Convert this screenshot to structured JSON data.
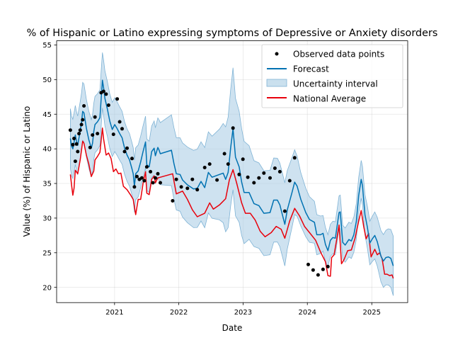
{
  "chart_data": {
    "type": "line",
    "title": "% of Hispanic or Latino expressing symptoms of Depressive or Anxiety disorders",
    "xlabel": "Date",
    "ylabel": "Value (%) of Hispanic or Latino",
    "xlim": [
      "2020-02-07",
      "2025-07-24"
    ],
    "ylim": [
      17.8,
      55.6
    ],
    "x_ticks": [
      "2021",
      "2022",
      "2023",
      "2024",
      "2025"
    ],
    "y_ticks": [
      20,
      25,
      30,
      35,
      40,
      45,
      50,
      55
    ],
    "grid": true,
    "legend": {
      "position": "top-right",
      "entries": [
        "Observed data points",
        "Forecast",
        "Uncertainty interval",
        "National Average"
      ]
    },
    "colors": {
      "observed": "#000000",
      "forecast": "#0072b2",
      "interval": "#a6cbe3",
      "national": "#e8000b"
    },
    "observed": [
      [
        "2020-04-25",
        42.7
      ],
      [
        "2020-05-09",
        40.6
      ],
      [
        "2020-05-16",
        41.5
      ],
      [
        "2020-05-23",
        38.2
      ],
      [
        "2020-05-30",
        40.7
      ],
      [
        "2020-06-06",
        39.6
      ],
      [
        "2020-06-13",
        42.2
      ],
      [
        "2020-06-20",
        42.7
      ],
      [
        "2020-06-27",
        43.5
      ],
      [
        "2020-07-04",
        44.2
      ],
      [
        "2020-07-11",
        46.2
      ],
      [
        "2020-08-15",
        40.2
      ],
      [
        "2020-08-29",
        42.0
      ],
      [
        "2020-09-12",
        44.6
      ],
      [
        "2020-09-26",
        42.2
      ],
      [
        "2020-10-17",
        48.1
      ],
      [
        "2020-10-31",
        48.3
      ],
      [
        "2020-11-14",
        47.9
      ],
      [
        "2020-11-28",
        46.3
      ],
      [
        "2020-12-26",
        42.1
      ],
      [
        "2021-01-16",
        47.2
      ],
      [
        "2021-01-30",
        43.9
      ],
      [
        "2021-02-13",
        42.9
      ],
      [
        "2021-02-27",
        39.6
      ],
      [
        "2021-03-13",
        40.1
      ],
      [
        "2021-04-10",
        38.6
      ],
      [
        "2021-04-24",
        34.5
      ],
      [
        "2021-05-08",
        36.0
      ],
      [
        "2021-05-22",
        35.6
      ],
      [
        "2021-06-05",
        35.8
      ],
      [
        "2021-06-19",
        35.4
      ],
      [
        "2021-07-03",
        37.4
      ],
      [
        "2021-07-24",
        36.7
      ],
      [
        "2021-08-07",
        35.1
      ],
      [
        "2021-08-21",
        35.8
      ],
      [
        "2021-09-04",
        36.4
      ],
      [
        "2021-09-18",
        35.1
      ],
      [
        "2021-11-27",
        32.5
      ],
      [
        "2021-12-18",
        35.6
      ],
      [
        "2022-01-15",
        34.5
      ],
      [
        "2022-02-19",
        34.3
      ],
      [
        "2022-03-19",
        35.6
      ],
      [
        "2022-04-16",
        34.1
      ],
      [
        "2022-05-28",
        37.3
      ],
      [
        "2022-06-25",
        37.8
      ],
      [
        "2022-08-06",
        35.5
      ],
      [
        "2022-09-17",
        39.3
      ],
      [
        "2022-10-08",
        37.8
      ],
      [
        "2022-11-05",
        43.0
      ],
      [
        "2022-12-10",
        36.3
      ],
      [
        "2022-12-31",
        38.5
      ],
      [
        "2023-01-28",
        35.9
      ],
      [
        "2023-03-04",
        35.1
      ],
      [
        "2023-04-01",
        35.8
      ],
      [
        "2023-04-29",
        36.5
      ],
      [
        "2023-06-03",
        35.8
      ],
      [
        "2023-07-01",
        37.2
      ],
      [
        "2023-07-29",
        36.7
      ],
      [
        "2023-08-26",
        31.0
      ],
      [
        "2023-09-23",
        35.4
      ],
      [
        "2023-10-21",
        38.7
      ],
      [
        "2024-01-06",
        23.3
      ],
      [
        "2024-02-03",
        22.5
      ],
      [
        "2024-03-02",
        21.8
      ],
      [
        "2024-03-30",
        22.6
      ],
      [
        "2024-04-27",
        23.0
      ]
    ],
    "forecast": [
      [
        "2020-04-25",
        41.5
      ],
      [
        "2020-05-02",
        40.4
      ],
      [
        "2020-05-09",
        40.0
      ],
      [
        "2020-05-16",
        40.9
      ],
      [
        "2020-05-23",
        42.0
      ],
      [
        "2020-05-30",
        41.1
      ],
      [
        "2020-06-06",
        40.5
      ],
      [
        "2020-06-13",
        41.6
      ],
      [
        "2020-06-20",
        42.6
      ],
      [
        "2020-06-27",
        43.8
      ],
      [
        "2020-07-04",
        45.4
      ],
      [
        "2020-07-11",
        45.2
      ],
      [
        "2020-07-25",
        43.0
      ],
      [
        "2020-08-08",
        41.3
      ],
      [
        "2020-08-22",
        40.1
      ],
      [
        "2020-08-29",
        40.8
      ],
      [
        "2020-09-05",
        42.5
      ],
      [
        "2020-09-12",
        43.5
      ],
      [
        "2020-09-26",
        43.9
      ],
      [
        "2020-10-10",
        44.5
      ],
      [
        "2020-10-17",
        47.2
      ],
      [
        "2020-10-24",
        49.9
      ],
      [
        "2020-10-31",
        48.8
      ],
      [
        "2020-11-07",
        47.3
      ],
      [
        "2020-11-21",
        45.8
      ],
      [
        "2020-12-05",
        44.0
      ],
      [
        "2020-12-19",
        42.8
      ],
      [
        "2021-01-02",
        43.5
      ],
      [
        "2021-01-16",
        42.9
      ],
      [
        "2021-01-30",
        42.2
      ],
      [
        "2021-02-13",
        41.6
      ],
      [
        "2021-02-27",
        40.1
      ],
      [
        "2021-03-13",
        39.1
      ],
      [
        "2021-03-27",
        38.4
      ],
      [
        "2021-04-10",
        37.1
      ],
      [
        "2021-04-17",
        36.4
      ],
      [
        "2021-04-24",
        34.6
      ],
      [
        "2021-05-01",
        36.4
      ],
      [
        "2021-05-15",
        36.8
      ],
      [
        "2021-05-29",
        38.1
      ],
      [
        "2021-06-12",
        39.6
      ],
      [
        "2021-06-26",
        41.0
      ],
      [
        "2021-07-03",
        37.7
      ],
      [
        "2021-07-17",
        37.4
      ],
      [
        "2021-07-31",
        39.6
      ],
      [
        "2021-08-14",
        40.1
      ],
      [
        "2021-08-21",
        39.0
      ],
      [
        "2021-09-04",
        40.2
      ],
      [
        "2021-09-11",
        39.8
      ],
      [
        "2021-09-18",
        39.3
      ],
      [
        "2021-11-20",
        39.8
      ],
      [
        "2021-12-04",
        37.9
      ],
      [
        "2021-12-18",
        36.4
      ],
      [
        "2022-01-08",
        36.3
      ],
      [
        "2022-01-22",
        35.5
      ],
      [
        "2022-02-19",
        34.8
      ],
      [
        "2022-03-26",
        34.2
      ],
      [
        "2022-04-16",
        34.3
      ],
      [
        "2022-05-07",
        35.3
      ],
      [
        "2022-05-28",
        34.4
      ],
      [
        "2022-06-18",
        36.6
      ],
      [
        "2022-07-09",
        35.9
      ],
      [
        "2022-08-20",
        36.3
      ],
      [
        "2022-09-10",
        36.5
      ],
      [
        "2022-09-24",
        35.6
      ],
      [
        "2022-10-08",
        36.6
      ],
      [
        "2022-10-22",
        40.1
      ],
      [
        "2022-11-05",
        42.9
      ],
      [
        "2022-11-19",
        38.8
      ],
      [
        "2022-12-10",
        37.4
      ],
      [
        "2022-12-24",
        35.2
      ],
      [
        "2023-01-07",
        33.7
      ],
      [
        "2023-02-04",
        33.7
      ],
      [
        "2023-03-04",
        32.1
      ],
      [
        "2023-04-01",
        31.8
      ],
      [
        "2023-04-29",
        30.7
      ],
      [
        "2023-06-03",
        30.8
      ],
      [
        "2023-06-24",
        32.6
      ],
      [
        "2023-07-15",
        32.6
      ],
      [
        "2023-07-29",
        31.9
      ],
      [
        "2023-08-26",
        29.1
      ],
      [
        "2023-09-09",
        31.2
      ],
      [
        "2023-10-07",
        33.8
      ],
      [
        "2023-10-21",
        35.2
      ],
      [
        "2023-11-04",
        34.6
      ],
      [
        "2023-11-25",
        32.7
      ],
      [
        "2023-12-23",
        30.8
      ],
      [
        "2024-01-13",
        29.8
      ],
      [
        "2024-02-10",
        29.4
      ],
      [
        "2024-02-24",
        27.6
      ],
      [
        "2024-03-16",
        27.6
      ],
      [
        "2024-03-30",
        27.8
      ],
      [
        "2024-04-13",
        26.2
      ],
      [
        "2024-04-27",
        25.3
      ],
      [
        "2024-05-11",
        26.8
      ],
      [
        "2024-05-25",
        27.2
      ],
      [
        "2024-06-08",
        27.1
      ],
      [
        "2024-06-29",
        30.8
      ],
      [
        "2024-07-06",
        30.9
      ],
      [
        "2024-07-20",
        26.5
      ],
      [
        "2024-08-03",
        26.1
      ],
      [
        "2024-08-24",
        26.9
      ],
      [
        "2024-09-07",
        26.7
      ],
      [
        "2024-09-21",
        27.6
      ],
      [
        "2024-10-05",
        29.5
      ],
      [
        "2024-10-19",
        33.3
      ],
      [
        "2024-11-02",
        35.6
      ],
      [
        "2024-11-09",
        34.7
      ],
      [
        "2024-11-23",
        30.5
      ],
      [
        "2024-12-07",
        28.7
      ],
      [
        "2024-12-21",
        26.4
      ],
      [
        "2025-01-04",
        27.0
      ],
      [
        "2025-01-18",
        27.5
      ],
      [
        "2025-02-01",
        26.6
      ],
      [
        "2025-02-22",
        24.5
      ],
      [
        "2025-03-08",
        23.8
      ],
      [
        "2025-03-22",
        24.3
      ],
      [
        "2025-04-05",
        24.4
      ],
      [
        "2025-04-19",
        24.2
      ],
      [
        "2025-05-03",
        23.1
      ]
    ],
    "interval_halfwidth": [
      [
        "2020-04-25",
        4.3
      ],
      [
        "2020-06-30",
        4.2
      ],
      [
        "2020-10-24",
        4.0
      ],
      [
        "2021-03-01",
        3.8
      ],
      [
        "2021-07-31",
        3.7
      ],
      [
        "2021-10-20",
        5.0
      ],
      [
        "2022-03-01",
        5.5
      ],
      [
        "2022-08-01",
        6.0
      ],
      [
        "2022-11-05",
        8.8
      ],
      [
        "2023-03-01",
        6.2
      ],
      [
        "2023-08-26",
        6.0
      ],
      [
        "2023-12-01",
        3.7
      ],
      [
        "2024-04-27",
        2.3
      ],
      [
        "2024-10-19",
        2.6
      ],
      [
        "2025-05-03",
        4.3
      ]
    ],
    "national_average": [
      [
        "2020-04-25",
        36.3
      ],
      [
        "2020-05-02",
        34.8
      ],
      [
        "2020-05-09",
        33.3
      ],
      [
        "2020-05-16",
        34.3
      ],
      [
        "2020-05-23",
        36.9
      ],
      [
        "2020-06-06",
        36.4
      ],
      [
        "2020-06-20",
        38.4
      ],
      [
        "2020-07-04",
        41.1
      ],
      [
        "2020-07-11",
        40.8
      ],
      [
        "2020-07-25",
        39.1
      ],
      [
        "2020-08-08",
        37.8
      ],
      [
        "2020-08-22",
        36.0
      ],
      [
        "2020-09-05",
        36.8
      ],
      [
        "2020-09-12",
        38.4
      ],
      [
        "2020-09-26",
        38.9
      ],
      [
        "2020-10-10",
        39.5
      ],
      [
        "2020-10-24",
        43.0
      ],
      [
        "2020-10-31",
        41.4
      ],
      [
        "2020-11-14",
        39.1
      ],
      [
        "2020-11-28",
        39.4
      ],
      [
        "2020-12-12",
        38.6
      ],
      [
        "2020-12-26",
        36.7
      ],
      [
        "2021-01-09",
        37.1
      ],
      [
        "2021-01-23",
        36.4
      ],
      [
        "2021-02-06",
        36.5
      ],
      [
        "2021-02-20",
        34.6
      ],
      [
        "2021-03-13",
        34.1
      ],
      [
        "2021-04-03",
        33.3
      ],
      [
        "2021-04-17",
        32.7
      ],
      [
        "2021-05-01",
        30.5
      ],
      [
        "2021-05-15",
        32.7
      ],
      [
        "2021-05-29",
        32.7
      ],
      [
        "2021-06-12",
        35.0
      ],
      [
        "2021-06-26",
        36.7
      ],
      [
        "2021-07-03",
        33.6
      ],
      [
        "2021-07-17",
        33.4
      ],
      [
        "2021-07-31",
        35.6
      ],
      [
        "2021-08-14",
        36.1
      ],
      [
        "2021-08-21",
        35.1
      ],
      [
        "2021-09-04",
        35.8
      ],
      [
        "2021-11-27",
        36.4
      ],
      [
        "2021-12-18",
        33.5
      ],
      [
        "2022-01-22",
        33.9
      ],
      [
        "2022-02-19",
        32.7
      ],
      [
        "2022-03-19",
        31.2
      ],
      [
        "2022-04-16",
        30.2
      ],
      [
        "2022-05-28",
        30.7
      ],
      [
        "2022-06-25",
        32.2
      ],
      [
        "2022-07-16",
        31.3
      ],
      [
        "2022-08-20",
        31.9
      ],
      [
        "2022-09-24",
        32.8
      ],
      [
        "2022-10-15",
        35.5
      ],
      [
        "2022-11-05",
        37.0
      ],
      [
        "2022-11-26",
        35.0
      ],
      [
        "2022-12-24",
        32.2
      ],
      [
        "2023-01-14",
        30.7
      ],
      [
        "2023-02-11",
        30.7
      ],
      [
        "2023-03-11",
        29.7
      ],
      [
        "2023-04-08",
        28.1
      ],
      [
        "2023-05-06",
        27.3
      ],
      [
        "2023-06-10",
        27.9
      ],
      [
        "2023-07-08",
        28.8
      ],
      [
        "2023-08-05",
        28.4
      ],
      [
        "2023-08-26",
        27.1
      ],
      [
        "2023-09-23",
        29.6
      ],
      [
        "2023-10-21",
        31.4
      ],
      [
        "2023-11-18",
        30.3
      ],
      [
        "2023-12-16",
        28.8
      ],
      [
        "2024-01-20",
        27.7
      ],
      [
        "2024-02-17",
        26.8
      ],
      [
        "2024-03-16",
        25.1
      ],
      [
        "2024-04-13",
        23.7
      ],
      [
        "2024-04-27",
        21.7
      ],
      [
        "2024-05-11",
        21.6
      ],
      [
        "2024-05-18",
        24.3
      ],
      [
        "2024-06-01",
        24.7
      ],
      [
        "2024-06-15",
        26.8
      ],
      [
        "2024-06-29",
        29.0
      ],
      [
        "2024-07-13",
        23.4
      ],
      [
        "2024-07-27",
        24.0
      ],
      [
        "2024-08-17",
        25.3
      ],
      [
        "2024-09-07",
        25.4
      ],
      [
        "2024-09-28",
        27.1
      ],
      [
        "2024-10-19",
        29.6
      ],
      [
        "2024-11-02",
        31.1
      ],
      [
        "2024-11-16",
        28.8
      ],
      [
        "2024-11-30",
        27.0
      ],
      [
        "2024-12-14",
        27.8
      ],
      [
        "2024-12-28",
        24.4
      ],
      [
        "2025-01-18",
        25.5
      ],
      [
        "2025-02-01",
        24.7
      ],
      [
        "2025-02-15",
        25.0
      ],
      [
        "2025-03-01",
        24.1
      ],
      [
        "2025-03-15",
        21.9
      ],
      [
        "2025-03-29",
        21.9
      ],
      [
        "2025-04-12",
        21.7
      ],
      [
        "2025-04-26",
        21.8
      ],
      [
        "2025-05-03",
        21.3
      ]
    ]
  }
}
